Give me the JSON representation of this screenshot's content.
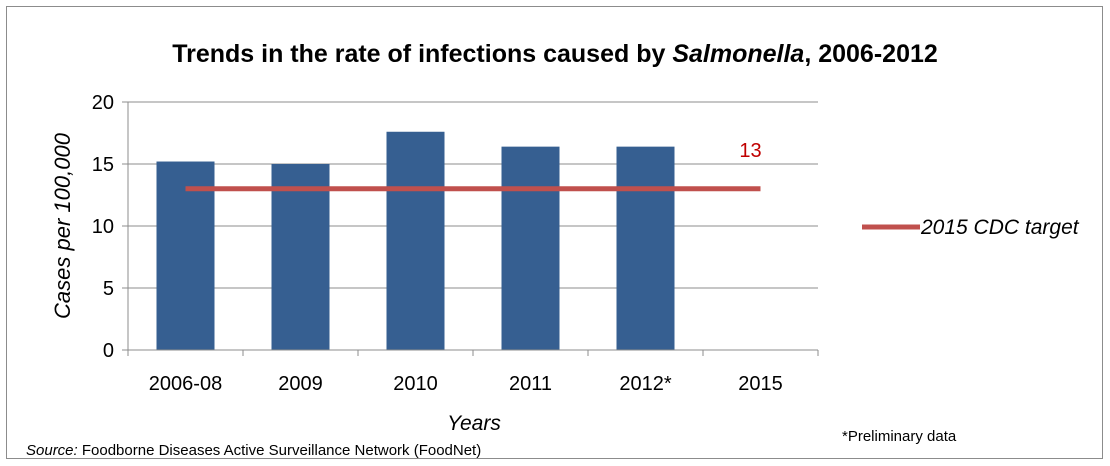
{
  "chart_data": {
    "type": "bar",
    "title_prefix": "Trends in the rate of infections caused by ",
    "title_italic": "Salmonella",
    "title_suffix": ", 2006-2012",
    "categories": [
      "2006-08",
      "2009",
      "2010",
      "2011",
      "2012*",
      "2015"
    ],
    "values": [
      15.2,
      15.0,
      17.6,
      16.4,
      16.4,
      null
    ],
    "bar_color": "#365f91",
    "xlabel": "Years",
    "ylabel": "Cases per 100,000",
    "ylim": [
      0,
      20
    ],
    "yticks": [
      "0",
      "5",
      "10",
      "15",
      "20"
    ],
    "grid": true,
    "target_line": {
      "name": "2015 CDC target",
      "value": 13,
      "label": "13",
      "color": "#c0504d",
      "label_color": "#c00000"
    },
    "legend": "right"
  },
  "source_label": "Source:",
  "source_text": " Foodborne Diseases Active Surveillance Network (FoodNet)",
  "footnote": "*Preliminary data"
}
